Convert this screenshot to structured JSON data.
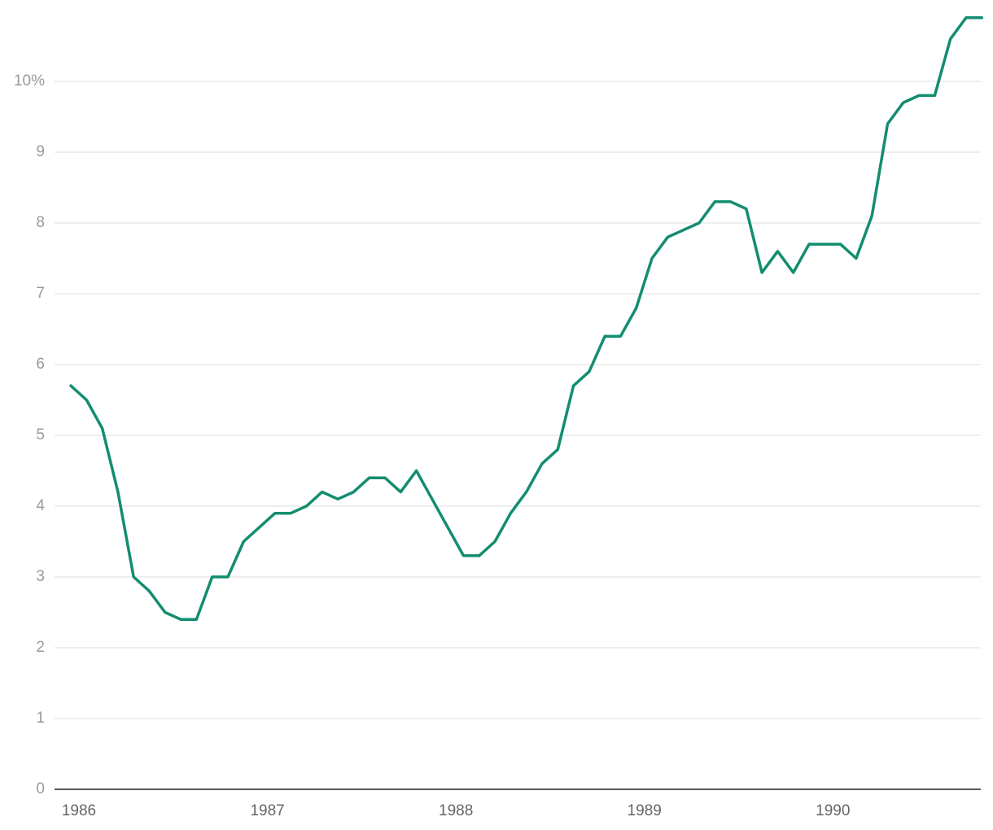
{
  "chart_data": {
    "type": "line",
    "categories": [
      "1986",
      null,
      null,
      null,
      null,
      null,
      null,
      null,
      null,
      null,
      null,
      null,
      "1987",
      null,
      null,
      null,
      null,
      null,
      null,
      null,
      null,
      null,
      null,
      null,
      "1988",
      null,
      null,
      null,
      null,
      null,
      null,
      null,
      null,
      null,
      null,
      null,
      "1989",
      null,
      null,
      null,
      null,
      null,
      null,
      null,
      null,
      null,
      null,
      null,
      "1990",
      null,
      null,
      null,
      null,
      null,
      null,
      null,
      null,
      null,
      null
    ],
    "series": [
      {
        "color": "#138d70",
        "values": [
          5.7,
          5.5,
          5.1,
          4.2,
          3.0,
          2.8,
          2.5,
          2.4,
          2.4,
          3.0,
          3.0,
          3.5,
          3.7,
          3.9,
          3.9,
          4.0,
          4.2,
          4.1,
          4.2,
          4.4,
          4.4,
          4.2,
          4.5,
          4.1,
          3.7,
          3.3,
          3.3,
          3.5,
          3.9,
          4.2,
          4.6,
          4.8,
          5.7,
          5.9,
          6.4,
          6.4,
          6.8,
          7.5,
          7.8,
          7.9,
          8.0,
          8.3,
          8.3,
          8.2,
          7.3,
          7.6,
          7.3,
          7.7,
          7.7,
          7.7,
          7.5,
          8.1,
          9.4,
          9.7,
          9.8,
          9.8,
          10.6,
          10.9,
          10.9
        ]
      }
    ],
    "ylim": [
      0,
      11
    ],
    "yticks": [
      0,
      1,
      2,
      3,
      4,
      5,
      6,
      7,
      8,
      9,
      {
        "value": 10,
        "label": "10%"
      }
    ],
    "grid": true
  }
}
